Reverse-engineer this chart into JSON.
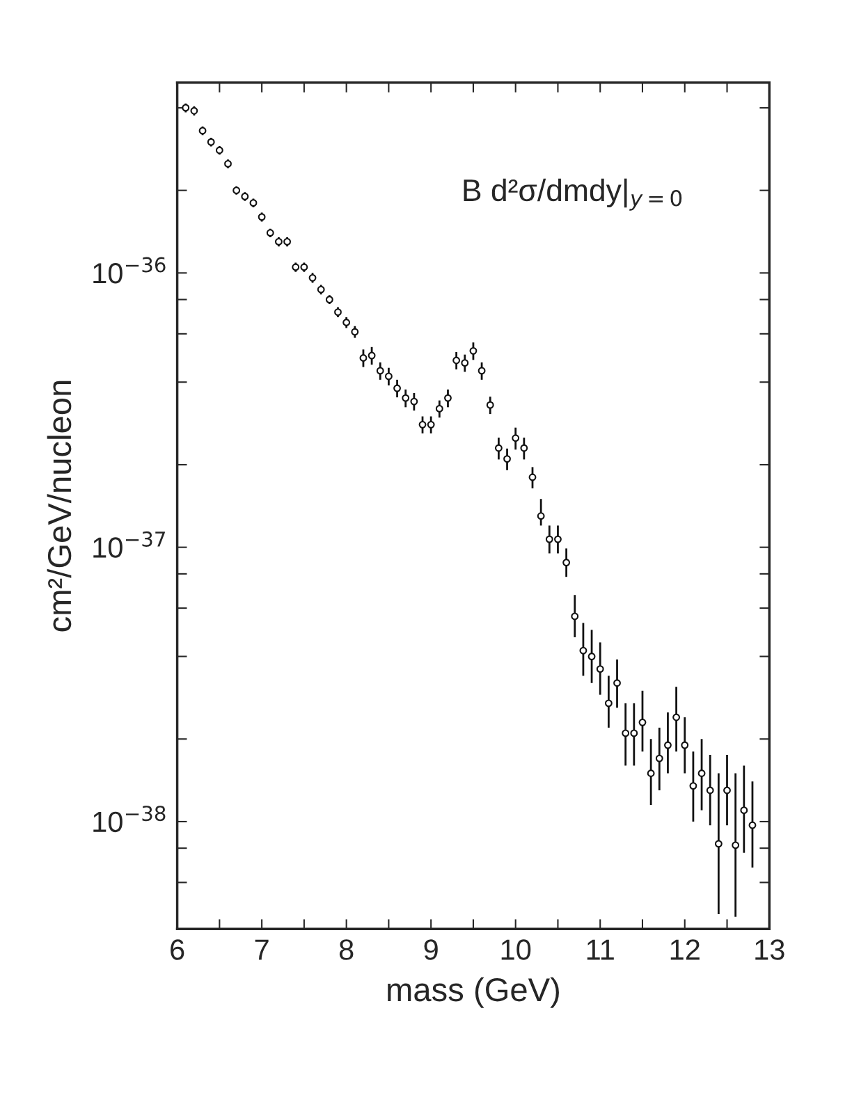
{
  "chart_data": {
    "type": "scatter",
    "xlabel": "mass (GeV)",
    "ylabel": "cm²/GeV/nucleon",
    "annotations": [
      "B d²σ/dmdy|$_{y=0}$"
    ],
    "x": [
      6.1,
      6.2,
      6.3,
      6.4,
      6.5,
      6.6,
      6.7,
      6.8,
      6.9,
      7.0,
      7.1,
      7.2,
      7.3,
      7.4,
      7.5,
      7.6,
      7.7,
      7.8,
      7.9,
      8.0,
      8.1,
      8.2,
      8.3,
      8.4,
      8.5,
      8.6,
      8.7,
      8.8,
      8.9,
      9.0,
      9.1,
      9.2,
      9.3,
      9.4,
      9.5,
      9.6,
      9.7,
      9.8,
      9.9,
      10.0,
      10.1,
      10.2,
      10.3,
      10.4,
      10.5,
      10.6,
      10.7,
      10.8,
      10.9,
      11.0,
      11.1,
      11.2,
      11.3,
      11.4,
      11.5,
      11.6,
      11.7,
      11.8,
      11.9,
      12.0,
      12.1,
      12.2,
      12.3,
      12.4,
      12.5,
      12.6,
      12.7,
      12.8
    ],
    "series": [
      {
        "color": "#111111",
        "values": [
          4e-36,
          3.9e-36,
          3.3e-36,
          3e-36,
          2.8e-36,
          2.5e-36,
          2e-36,
          1.9e-36,
          1.8e-36,
          1.6e-36,
          1.4e-36,
          1.3e-36,
          1.3e-36,
          1.05e-36,
          1.05e-36,
          9.6e-37,
          8.7e-37,
          8e-37,
          7.2e-37,
          6.6e-37,
          6.1e-37,
          4.9e-37,
          5e-37,
          4.4e-37,
          4.2e-37,
          3.8e-37,
          3.5e-37,
          3.4e-37,
          2.8e-37,
          2.8e-37,
          3.2e-37,
          3.5e-37,
          4.8e-37,
          4.7e-37,
          5.2e-37,
          4.4e-37,
          3.3e-37,
          2.3e-37,
          2.1e-37,
          2.5e-37,
          2.3e-37,
          1.8e-37,
          1.3e-37,
          1.07e-37,
          1.07e-37,
          8.8e-38,
          5.6e-38,
          4.2e-38,
          4e-38,
          3.6e-38,
          2.7e-38,
          3.2e-38,
          2.1e-38,
          2.1e-38,
          2.3e-38,
          1.5e-38,
          1.7e-38,
          1.9e-38,
          2.4e-38,
          1.9e-38,
          1.35e-38,
          1.5e-38,
          1.3e-38,
          8.3e-39,
          1.3e-38,
          8.2e-39,
          1.1e-38,
          9.7e-39
        ],
        "errors": [
          1.5e-37,
          1.5e-37,
          1.2e-37,
          1.1e-37,
          1e-37,
          9e-38,
          7e-38,
          7e-38,
          6.5e-38,
          6e-38,
          5e-38,
          5e-38,
          5e-38,
          4e-38,
          4e-38,
          4e-38,
          3.5e-38,
          3e-38,
          3e-38,
          3e-38,
          3e-38,
          3.6e-38,
          3.7e-38,
          3.2e-38,
          3.1e-38,
          2.8e-38,
          2.6e-38,
          2.5e-38,
          2e-38,
          2e-38,
          2.3e-38,
          2.6e-38,
          3.5e-38,
          3.4e-38,
          3.8e-38,
          3.2e-38,
          2.4e-38,
          2.1e-38,
          1.9e-38,
          2.3e-38,
          2.1e-38,
          1.6e-38,
          [
            1.2e-37,
            1.5e-37
          ],
          [
            9.5e-38,
            1.2e-37
          ],
          [
            9.5e-38,
            1.2e-37
          ],
          [
            7.8e-38,
            9.9e-38
          ],
          [
            4.7e-38,
            6.7e-38
          ],
          [
            3.4e-38,
            5.3e-38
          ],
          [
            3.2e-38,
            5e-38
          ],
          [
            2.9e-38,
            4.5e-38
          ],
          [
            2.2e-38,
            3.4e-38
          ],
          [
            2.6e-38,
            3.9e-38
          ],
          [
            1.6e-38,
            2.7e-38
          ],
          [
            1.6e-38,
            2.7e-38
          ],
          [
            1.8e-38,
            3e-38
          ],
          [
            1.15e-38,
            2e-38
          ],
          [
            1.3e-38,
            2.2e-38
          ],
          [
            1.5e-38,
            2.5e-38
          ],
          [
            1.8e-38,
            3.1e-38
          ],
          [
            1.5e-38,
            2.4e-38
          ],
          [
            1e-38,
            1.8e-38
          ],
          [
            1.1e-38,
            2e-38
          ],
          [
            9.7e-39,
            1.75e-38
          ],
          [
            4.6e-39,
            1.5e-38
          ],
          [
            9.7e-39,
            1.75e-38
          ],
          [
            4.5e-39,
            1.5e-38
          ],
          [
            7.7e-39,
            1.6e-38
          ],
          [
            6.8e-39,
            1.4e-38
          ]
        ]
      }
    ],
    "log": "y",
    "marker": "circle",
    "grid": false,
    "xlim": [
      6,
      13
    ],
    "xticks": [
      6,
      {
        "value": 6.5,
        "label": null
      },
      7,
      {
        "value": 7.5,
        "label": null
      },
      8,
      {
        "value": 8.5,
        "label": null
      },
      9,
      {
        "value": 9.5,
        "label": null
      },
      10,
      {
        "value": 10.5,
        "label": null
      },
      11,
      {
        "value": 11.5,
        "label": null
      },
      12,
      {
        "value": 12.5,
        "label": null
      },
      13
    ],
    "ylim": [
      4.06e-39,
      4.94e-36
    ],
    "yticks": [
      {
        "value": 4e-36,
        "label": null
      },
      {
        "value": 2e-36,
        "label": null
      },
      {
        "value": 1e-36,
        "label": "10$^{−36}$"
      },
      {
        "value": 8e-37,
        "label": null
      },
      {
        "value": 6e-37,
        "label": null
      },
      {
        "value": 4e-37,
        "label": null
      },
      {
        "value": 2e-37,
        "label": null
      },
      {
        "value": 1e-37,
        "label": "10$^{−37}$"
      },
      {
        "value": 8e-38,
        "label": null
      },
      {
        "value": 6e-38,
        "label": null
      },
      {
        "value": 4e-38,
        "label": null
      },
      {
        "value": 2e-38,
        "label": null
      },
      {
        "value": 1e-38,
        "label": "10$^{−38}$"
      },
      {
        "value": 8e-39,
        "label": null
      },
      {
        "value": 6e-39,
        "label": null
      }
    ]
  }
}
